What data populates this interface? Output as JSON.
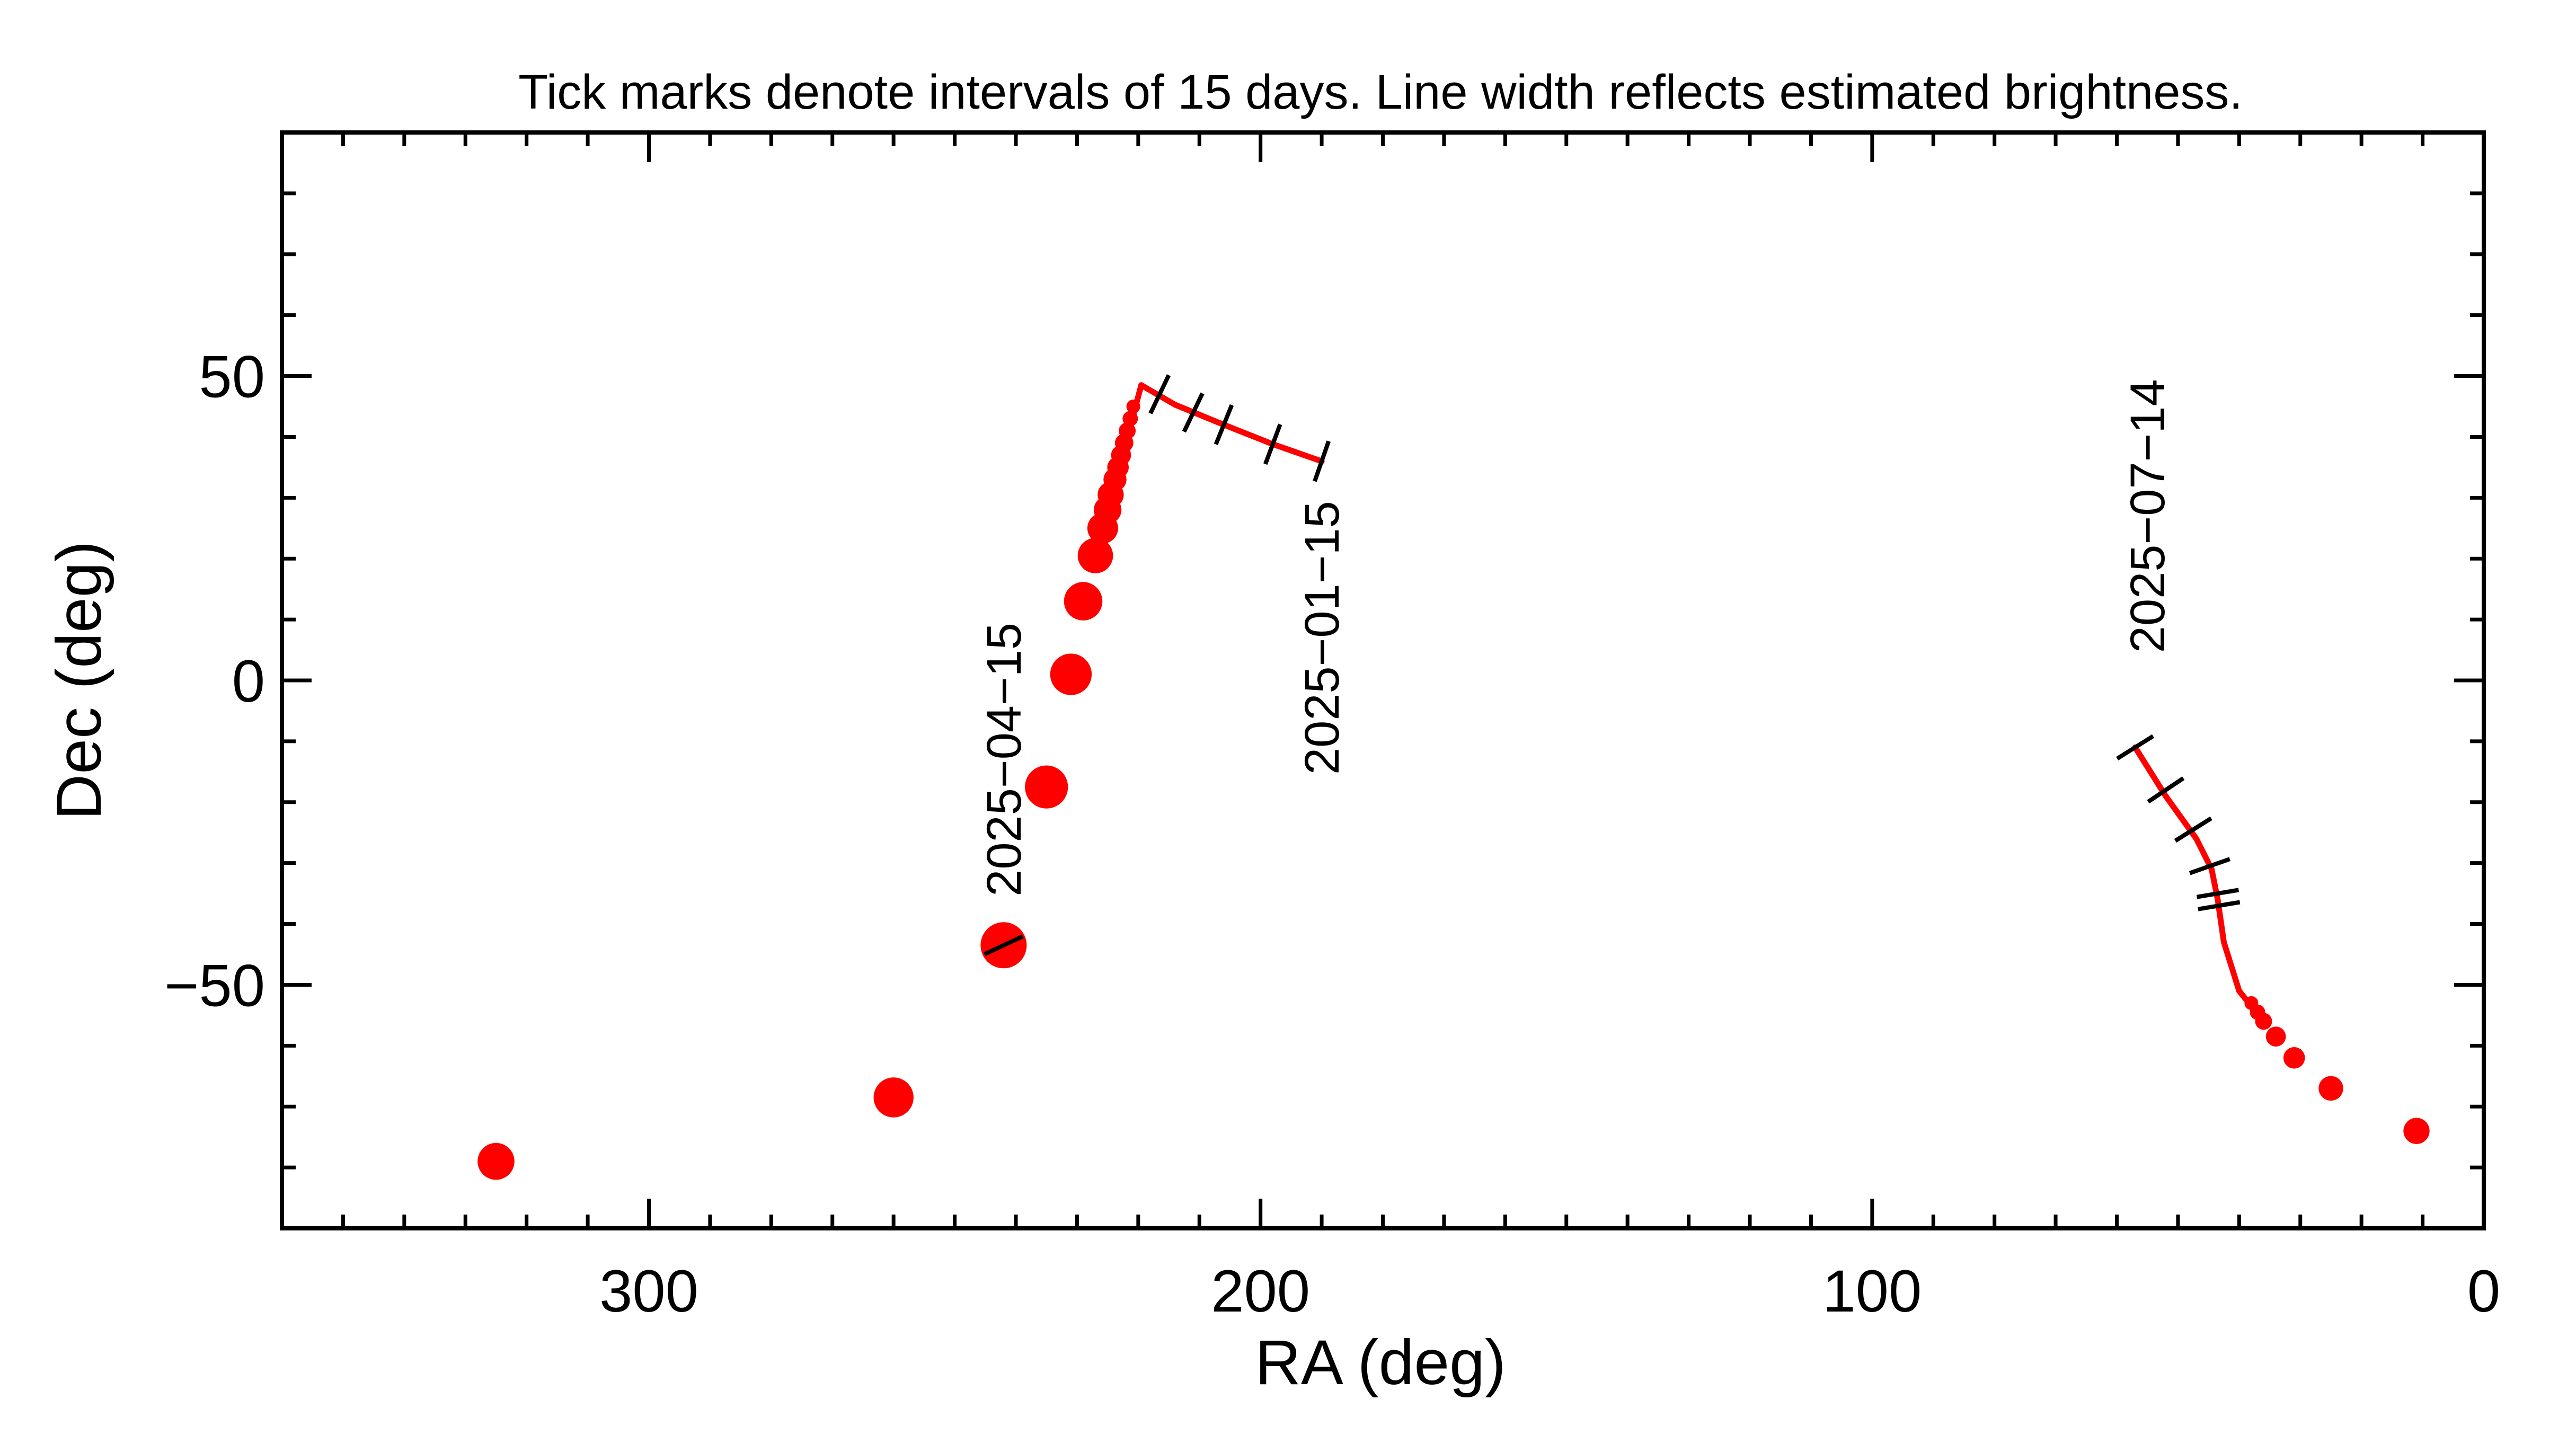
{
  "chart_data": {
    "type": "line",
    "title": "Tick marks denote intervals of 15 days.  Line width reflects estimated brightness.",
    "xlabel": "RA (deg)",
    "ylabel": "Dec (deg)",
    "xlim": [
      360,
      0
    ],
    "ylim": [
      -90,
      90
    ],
    "x_ticks": [
      300,
      200,
      100,
      0
    ],
    "y_ticks": [
      50,
      0,
      -50
    ],
    "x_tick_labels": [
      "300",
      "200",
      "100",
      "0"
    ],
    "y_tick_labels": [
      "50",
      "0",
      "−50"
    ],
    "colors": {
      "track": "#ff0000",
      "marker": "#000000",
      "axis": "#000000"
    },
    "segments": [
      {
        "name": "segment-1",
        "line_ra": [
          190,
          198,
          206,
          214,
          219.5
        ],
        "line_dec": [
          36,
          38.8,
          42,
          45.3,
          48.5
        ],
        "ticks": [
          {
            "ra": 190,
            "dec": 36
          },
          {
            "ra": 198,
            "dec": 38.8
          },
          {
            "ra": 206,
            "dec": 42
          },
          {
            "ra": 211,
            "dec": 44
          },
          {
            "ra": 216.5,
            "dec": 47
          }
        ],
        "label": "2025−01−15",
        "label_ra": 190,
        "label_dec": 7
      },
      {
        "name": "segment-2",
        "line_ra": [
          219.5,
          221.5,
          224.5,
          226
        ],
        "line_dec": [
          48.5,
          41,
          31,
          25
        ],
        "points": [
          {
            "ra": 220.8,
            "dec": 45,
            "size": 9
          },
          {
            "ra": 221.3,
            "dec": 43,
            "size": 10
          },
          {
            "ra": 221.8,
            "dec": 41,
            "size": 11
          },
          {
            "ra": 222.3,
            "dec": 39,
            "size": 12
          },
          {
            "ra": 222.8,
            "dec": 37,
            "size": 13
          },
          {
            "ra": 223.3,
            "dec": 35,
            "size": 14
          },
          {
            "ra": 223.8,
            "dec": 33,
            "size": 15
          },
          {
            "ra": 224.5,
            "dec": 30.5,
            "size": 17
          },
          {
            "ra": 225,
            "dec": 28,
            "size": 18
          },
          {
            "ra": 225.8,
            "dec": 25,
            "size": 20
          },
          {
            "ra": 227,
            "dec": 20.5,
            "size": 23
          },
          {
            "ra": 229,
            "dec": 13,
            "size": 25
          },
          {
            "ra": 231,
            "dec": 1,
            "size": 27
          },
          {
            "ra": 235,
            "dec": -17.5,
            "size": 28
          },
          {
            "ra": 242,
            "dec": -43.5,
            "size": 30
          },
          {
            "ra": 260,
            "dec": -68.5,
            "size": 26
          },
          {
            "ra": 325,
            "dec": -79,
            "size": 24
          }
        ],
        "ticks": [
          {
            "ra": 242,
            "dec": -43.5,
            "angle": -25
          }
        ],
        "label": "2025−04−15",
        "label_ra": 242,
        "label_dec": -13
      },
      {
        "name": "segment-3",
        "line_ra": [
          57,
          52,
          47,
          44.5,
          43.5,
          42.5,
          40,
          36
        ],
        "line_dec": [
          -11,
          -19,
          -26,
          -31,
          -36,
          -43,
          -51,
          -56
        ],
        "points": [
          {
            "ra": 38,
            "dec": -53,
            "size": 9
          },
          {
            "ra": 37,
            "dec": -54.5,
            "size": 10
          },
          {
            "ra": 36,
            "dec": -56,
            "size": 11
          },
          {
            "ra": 34,
            "dec": -58.5,
            "size": 13
          },
          {
            "ra": 31,
            "dec": -62,
            "size": 14
          },
          {
            "ra": 25,
            "dec": -67,
            "size": 16
          },
          {
            "ra": 11,
            "dec": -74,
            "size": 17
          }
        ],
        "ticks": [
          {
            "ra": 57,
            "dec": -11
          },
          {
            "ra": 52,
            "dec": -18
          },
          {
            "ra": 47.5,
            "dec": -24.5
          },
          {
            "ra": 44.8,
            "dec": -30.5
          },
          {
            "ra": 43.5,
            "dec": -35
          },
          {
            "ra": 43.3,
            "dec": -37
          }
        ],
        "label": "2025−07−14",
        "label_ra": 55,
        "label_dec": 27
      }
    ]
  }
}
